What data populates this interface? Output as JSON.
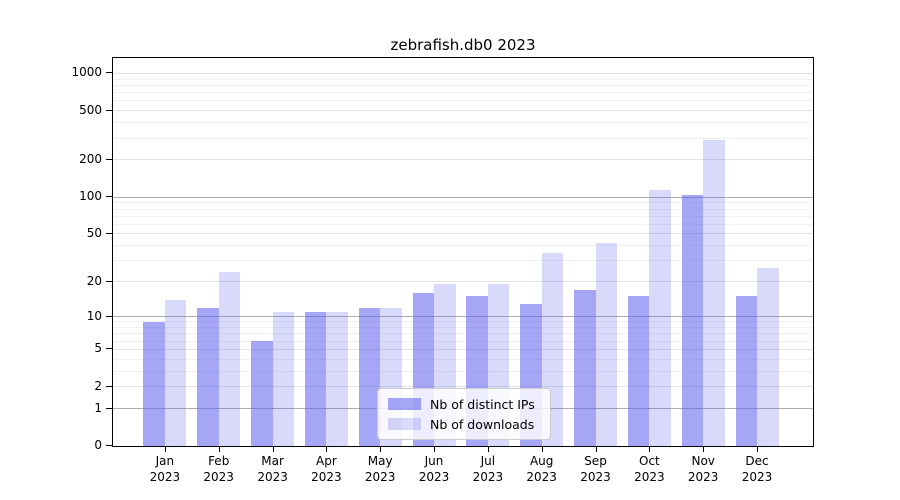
{
  "title": "zebrafish.db0 2023",
  "chart_data": {
    "type": "bar",
    "title": "zebrafish.db0 2023",
    "categories": [
      "Jan",
      "Feb",
      "Mar",
      "Apr",
      "May",
      "Jun",
      "Jul",
      "Aug",
      "Sep",
      "Oct",
      "Nov",
      "Dec"
    ],
    "year": "2023",
    "series": [
      {
        "name": "Nb of distinct IPs",
        "key": "distinct-ips",
        "values": [
          9,
          12,
          6,
          11,
          12,
          16,
          15,
          13,
          17,
          15,
          105,
          15
        ],
        "color": "rgba(96,96,240,0.56)"
      },
      {
        "name": "Nb of downloads",
        "key": "downloads",
        "values": [
          14,
          24,
          11,
          11,
          12,
          19,
          19,
          35,
          42,
          114,
          290,
          26
        ],
        "color": "rgba(96,96,240,0.24)"
      }
    ],
    "y_axis": {
      "scale": "log10(1+v)",
      "tick_labels": [
        "0",
        "1",
        "2",
        "5",
        "10",
        "20",
        "50",
        "100",
        "200",
        "500",
        "1000"
      ],
      "tick_values": [
        0,
        1,
        2,
        5,
        10,
        20,
        50,
        100,
        200,
        500,
        1000
      ],
      "ylim": [
        0,
        1300
      ],
      "gridlines_major": [
        1,
        10,
        100
      ],
      "gridlines_mid": [
        2,
        5,
        20,
        50,
        200,
        500,
        1000
      ],
      "gridlines_minor": [
        3,
        4,
        6,
        7,
        8,
        9,
        30,
        40,
        60,
        70,
        80,
        90,
        300,
        400,
        600,
        700,
        800,
        900
      ],
      "grid": "on"
    },
    "x_axis": {
      "tick_label_line1": [
        "Jan",
        "Feb",
        "Mar",
        "Apr",
        "May",
        "Jun",
        "Jul",
        "Aug",
        "Sep",
        "Oct",
        "Nov",
        "Dec"
      ],
      "tick_label_line2": "2023"
    },
    "legend": {
      "position": "lower center",
      "entries": [
        {
          "label": "Nb of distinct IPs",
          "color": "rgba(96,96,240,0.56)"
        },
        {
          "label": "Nb of downloads",
          "color": "rgba(96,96,240,0.24)"
        }
      ]
    },
    "colors": {
      "bar_dark_rendered": "#a7a7f6",
      "bar_light_rendered": "#d8d8fa",
      "grid_major": "#adadad",
      "grid_mid": "#e2e2e2",
      "grid_minor": "#f1f1f1"
    }
  }
}
